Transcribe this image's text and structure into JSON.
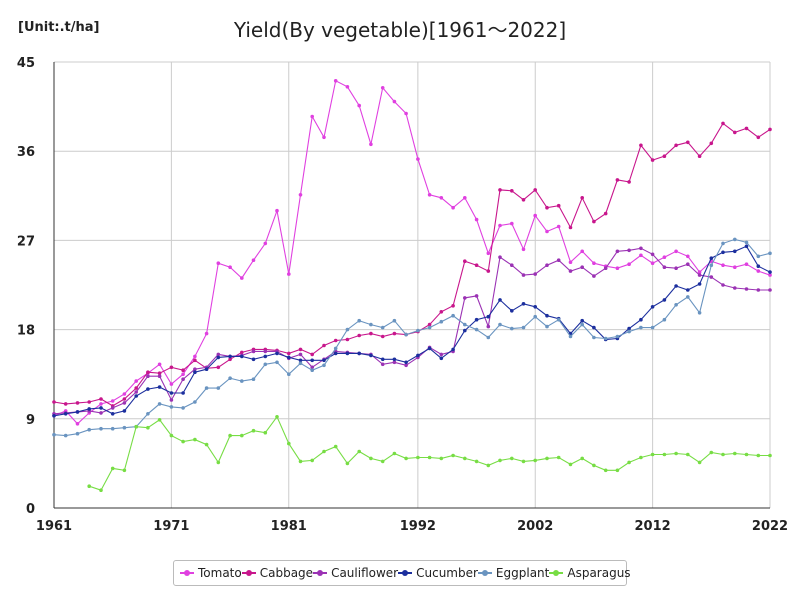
{
  "chart_data": {
    "type": "line",
    "title": "Yield(By vegetable)[1961～2022]",
    "unit_label": "[Unit:.t/ha]",
    "x_ticks": [
      1961,
      1971,
      1981,
      1992,
      2002,
      2012,
      2022
    ],
    "y_ticks": [
      0,
      9,
      18,
      27,
      36,
      45
    ],
    "xlim": [
      1961,
      2022
    ],
    "ylim": [
      0,
      45
    ],
    "grid": "vertical-and-horizontal",
    "legend_position": "bottom",
    "series": [
      {
        "name": "Tomato",
        "color": "#e040e0",
        "values": [
          9.3,
          9.8,
          8.5,
          9.6,
          10.5,
          10.8,
          11.5,
          12.8,
          13.6,
          14.5,
          12.5,
          13.5,
          15.3,
          17.6,
          24.7,
          24.3,
          23.2,
          25.0,
          26.7,
          30.0,
          23.6,
          31.6,
          39.5,
          37.4,
          43.1,
          42.5,
          40.6,
          36.7,
          42.4,
          41.0,
          39.8,
          35.2,
          31.6,
          31.3,
          30.3,
          31.3,
          29.1,
          25.7,
          28.5,
          28.7,
          26.1,
          29.5,
          27.9,
          28.4,
          24.8,
          25.9,
          24.7,
          24.4,
          24.2,
          24.6,
          25.5,
          24.7,
          25.3,
          25.9,
          25.4,
          23.8,
          24.9,
          24.5,
          24.3,
          24.6,
          23.9,
          23.5
        ]
      },
      {
        "name": "Cabbage",
        "color": "#c8168c",
        "values": [
          10.7,
          10.5,
          10.6,
          10.7,
          11.0,
          10.3,
          11.0,
          12.1,
          13.7,
          13.6,
          14.2,
          13.9,
          14.9,
          14.1,
          14.2,
          15.0,
          15.7,
          16.0,
          16.0,
          15.9,
          15.6,
          16.0,
          15.5,
          16.4,
          16.9,
          17.0,
          17.4,
          17.6,
          17.3,
          17.6,
          17.5,
          17.8,
          18.5,
          19.8,
          20.4,
          24.9,
          24.5,
          23.9,
          32.1,
          32.0,
          31.1,
          32.1,
          30.3,
          30.5,
          28.3,
          31.3,
          28.9,
          29.7,
          33.1,
          32.9,
          36.6,
          35.1,
          35.5,
          36.6,
          36.9,
          35.5,
          36.8,
          38.8,
          37.9,
          38.3,
          37.4,
          38.2
        ]
      },
      {
        "name": "Cauliflower",
        "color": "#9b32b4",
        "values": [
          9.5,
          9.6,
          9.7,
          9.8,
          9.6,
          10.1,
          10.6,
          11.7,
          13.3,
          13.3,
          10.9,
          13.0,
          14.0,
          14.2,
          15.5,
          15.3,
          15.4,
          15.8,
          15.8,
          15.8,
          15.1,
          15.5,
          14.2,
          15.0,
          15.8,
          15.7,
          15.6,
          15.5,
          14.5,
          14.7,
          14.4,
          15.2,
          16.2,
          15.5,
          15.8,
          21.2,
          21.4,
          18.3,
          25.3,
          24.5,
          23.5,
          23.6,
          24.5,
          25.0,
          23.9,
          24.3,
          23.4,
          24.2,
          25.9,
          26.0,
          26.2,
          25.6,
          24.3,
          24.2,
          24.6,
          23.5,
          23.3,
          22.5,
          22.2,
          22.1,
          22.0,
          22.0
        ]
      },
      {
        "name": "Cucumber",
        "color": "#1c2f9e",
        "values": [
          9.3,
          9.5,
          9.7,
          10.0,
          10.1,
          9.5,
          9.8,
          11.3,
          12.0,
          12.2,
          11.6,
          11.6,
          13.7,
          14.0,
          15.2,
          15.3,
          15.3,
          15.0,
          15.3,
          15.6,
          15.2,
          14.9,
          14.9,
          14.9,
          15.6,
          15.6,
          15.6,
          15.4,
          15.0,
          15.0,
          14.7,
          15.4,
          16.1,
          15.1,
          16.0,
          17.9,
          19.0,
          19.3,
          21.0,
          19.9,
          20.6,
          20.3,
          19.4,
          19.1,
          17.6,
          18.9,
          18.2,
          17.0,
          17.1,
          18.1,
          19.0,
          20.3,
          21.0,
          22.4,
          22.0,
          22.6,
          25.2,
          25.8,
          25.9,
          26.4,
          24.4,
          23.8
        ]
      },
      {
        "name": "Eggplant",
        "color": "#6a94c0",
        "values": [
          7.4,
          7.3,
          7.5,
          7.9,
          8.0,
          8.0,
          8.1,
          8.2,
          9.5,
          10.5,
          10.2,
          10.1,
          10.7,
          12.1,
          12.1,
          13.1,
          12.8,
          13.0,
          14.5,
          14.7,
          13.5,
          14.6,
          13.9,
          14.4,
          16.1,
          18.0,
          18.9,
          18.5,
          18.2,
          18.9,
          17.5,
          17.9,
          18.2,
          18.8,
          19.4,
          18.5,
          18.0,
          17.2,
          18.5,
          18.1,
          18.2,
          19.3,
          18.3,
          19.0,
          17.3,
          18.5,
          17.2,
          17.1,
          17.3,
          17.8,
          18.2,
          18.2,
          19.0,
          20.5,
          21.3,
          19.7,
          24.5,
          26.7,
          27.1,
          26.8,
          25.4,
          25.7
        ]
      },
      {
        "name": "Asparagus",
        "color": "#77dd44",
        "values": [
          null,
          null,
          null,
          2.2,
          1.8,
          4.0,
          3.8,
          8.2,
          8.1,
          8.9,
          7.3,
          6.7,
          6.9,
          6.4,
          4.6,
          7.3,
          7.3,
          7.8,
          7.6,
          9.2,
          6.5,
          4.7,
          4.8,
          5.7,
          6.2,
          4.5,
          5.7,
          5.0,
          4.7,
          5.5,
          5.0,
          5.1,
          5.1,
          5.0,
          5.3,
          5.0,
          4.7,
          4.3,
          4.8,
          5.0,
          4.7,
          4.8,
          5.0,
          5.1,
          4.4,
          5.0,
          4.3,
          3.8,
          3.8,
          4.6,
          5.1,
          5.4,
          5.4,
          5.5,
          5.4,
          4.6,
          5.6,
          5.4,
          5.5,
          5.4,
          5.3,
          5.3
        ]
      }
    ]
  }
}
